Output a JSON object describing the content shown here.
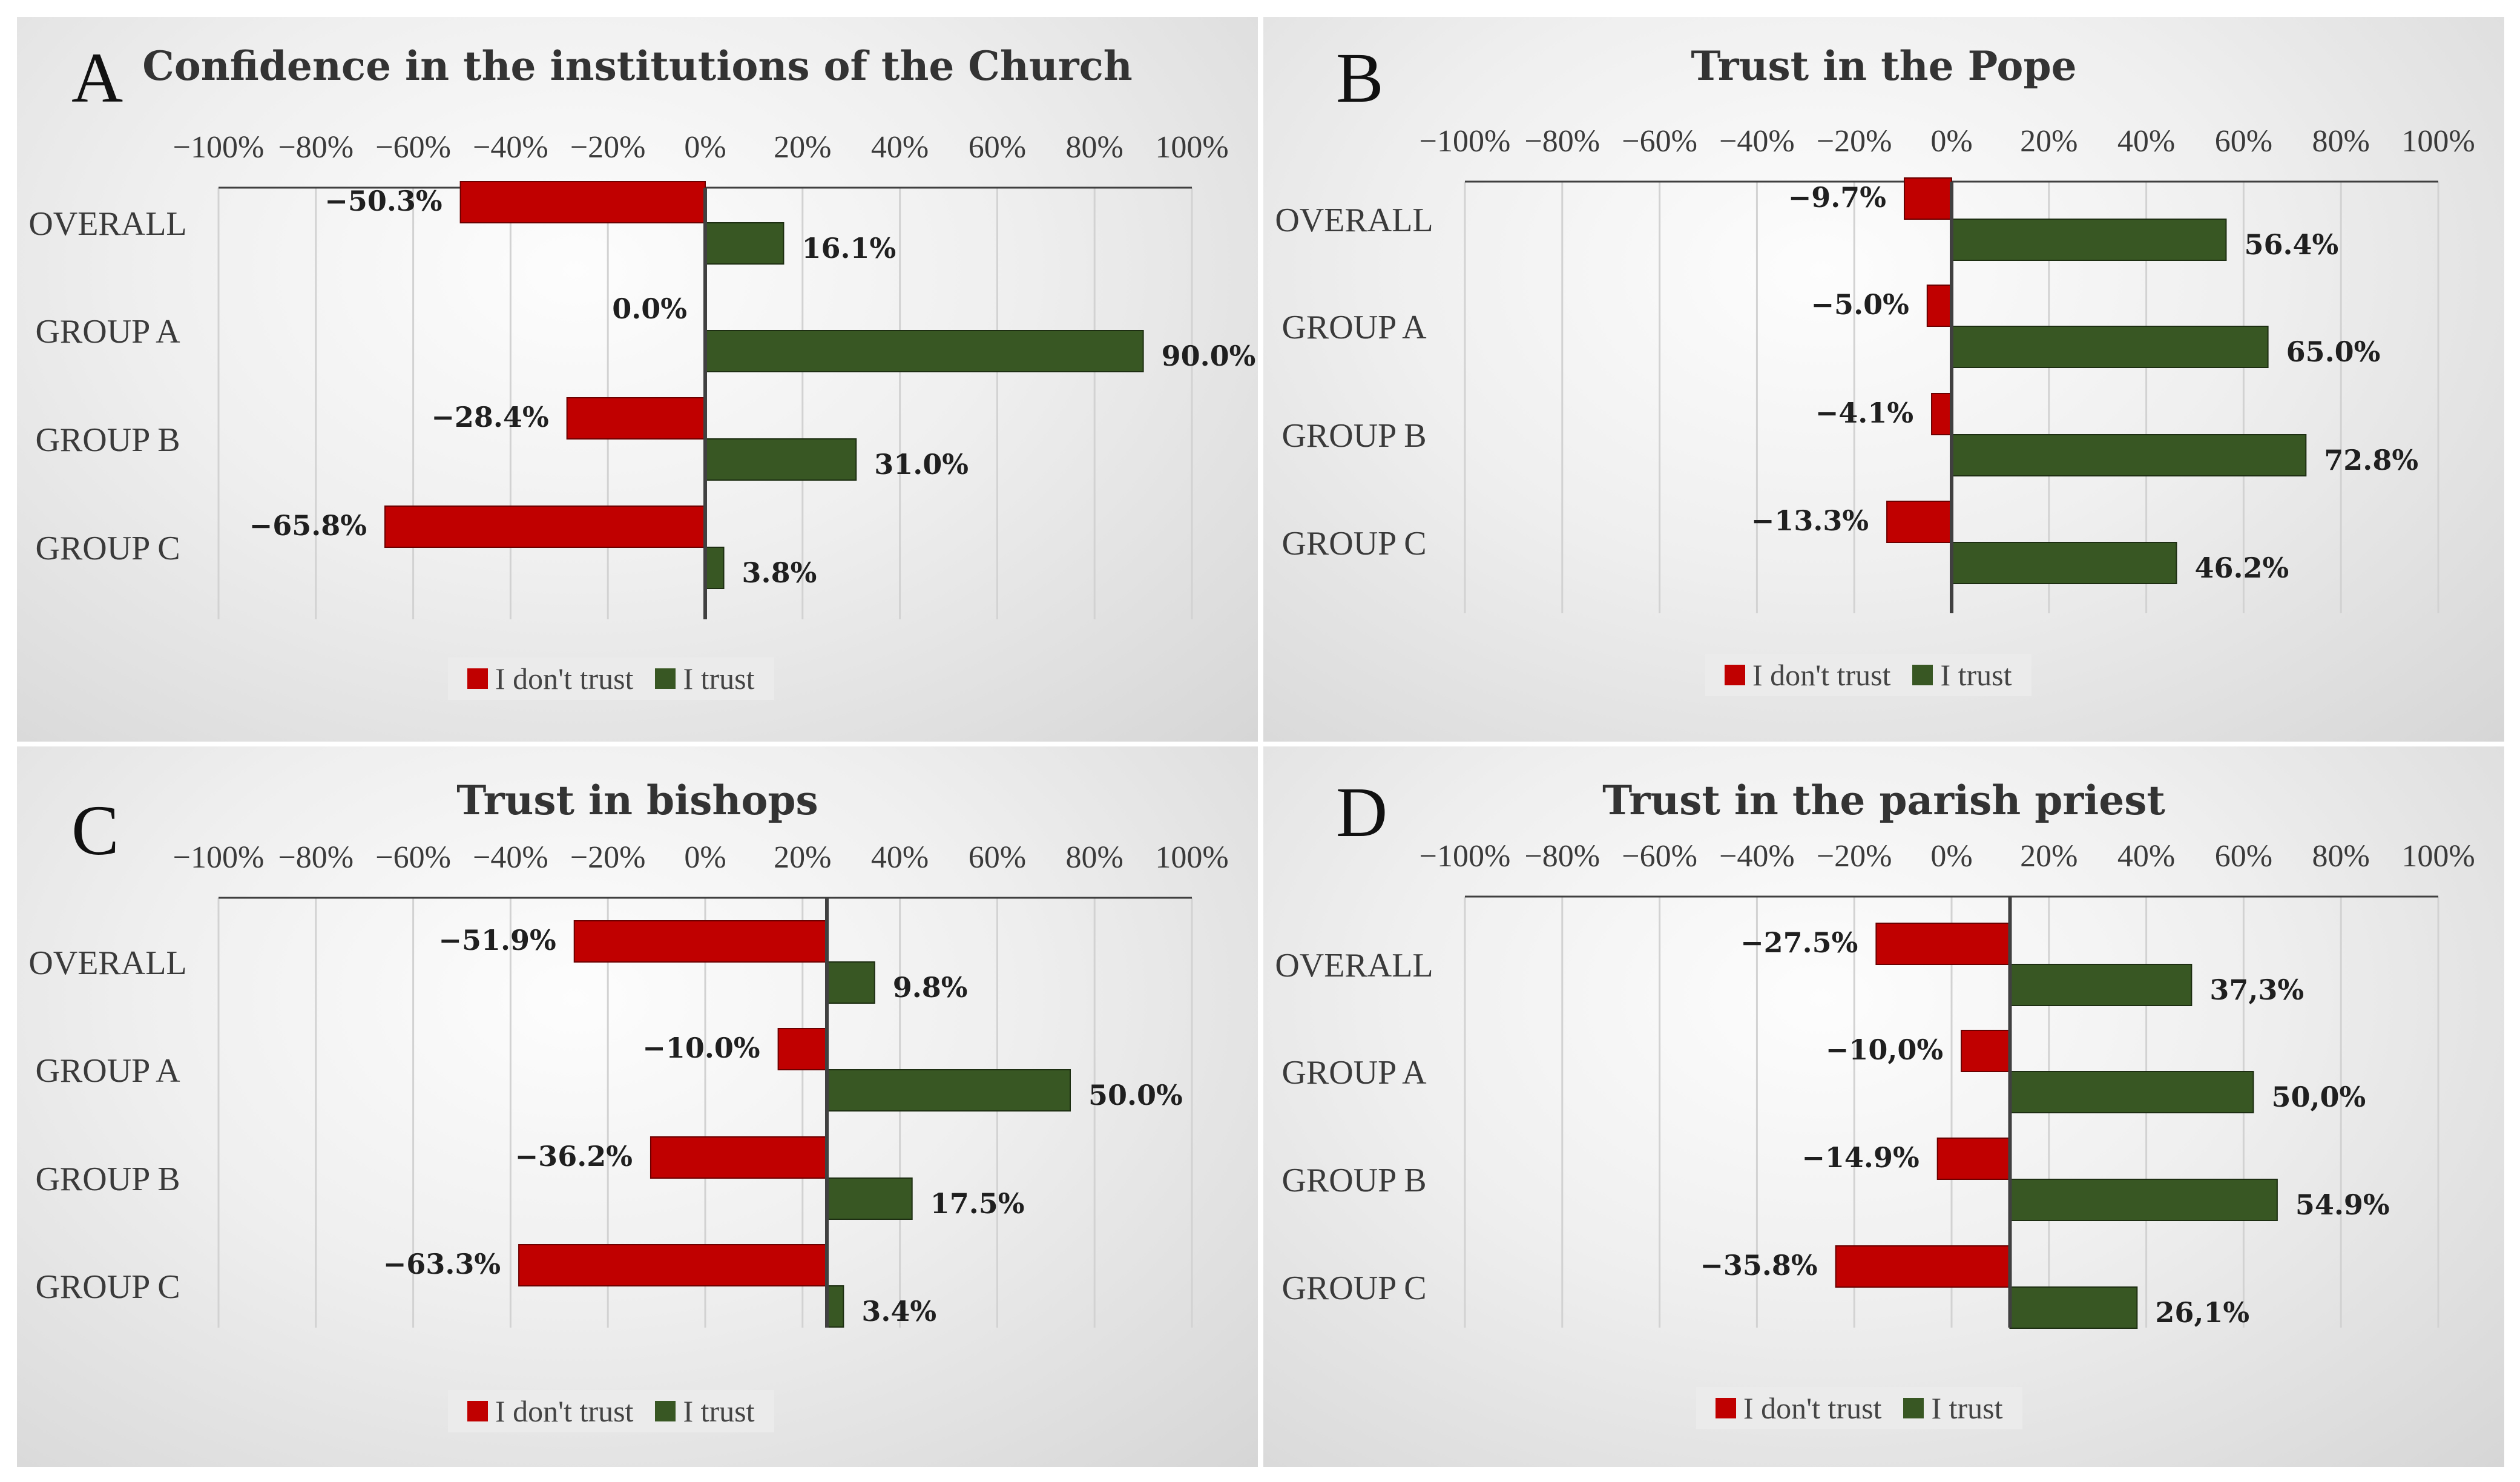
{
  "colors": {
    "distrust": "#c00000",
    "trust": "#385723",
    "grid": "#d2d2d2",
    "axis": "#404040"
  },
  "legend": {
    "distrust_label": "I don't trust",
    "trust_label": "I trust"
  },
  "chart_data": [
    {
      "type": "bar",
      "orientation": "horizontal",
      "panel_letter": "A",
      "title": "Confidence in the institutions of the Church",
      "categories": [
        "OVERALL",
        "GROUP A",
        "GROUP B",
        "GROUP C"
      ],
      "series": [
        {
          "name": "I don't trust",
          "values": [
            -50.3,
            0.0,
            -28.4,
            -65.8
          ],
          "labels": [
            "−50.3%",
            "0.0%",
            "−28.4%",
            "−65.8%"
          ]
        },
        {
          "name": "I trust",
          "values": [
            16.1,
            90.0,
            31.0,
            3.8
          ],
          "labels": [
            "16.1%",
            "90.0%",
            "31.0%",
            "3.8%"
          ]
        }
      ],
      "tick_labels": [
        "−100%",
        "−80%",
        "−60%",
        "−40%",
        "−20%",
        "0%",
        "20%",
        "40%",
        "60%",
        "80%",
        "100%"
      ],
      "xlim": [
        -100,
        100
      ],
      "axis_zero": 0,
      "grid": true,
      "legend_position": "bottom"
    },
    {
      "type": "bar",
      "orientation": "horizontal",
      "panel_letter": "B",
      "title": "Trust in the Pope",
      "categories": [
        "OVERALL",
        "GROUP A",
        "GROUP B",
        "GROUP C"
      ],
      "series": [
        {
          "name": "I don't trust",
          "values": [
            -9.7,
            -5.0,
            -4.1,
            -13.3
          ],
          "labels": [
            "−9.7%",
            "−5.0%",
            "−4.1%",
            "−13.3%"
          ]
        },
        {
          "name": "I trust",
          "values": [
            56.4,
            65.0,
            72.8,
            46.2
          ],
          "labels": [
            "56.4%",
            "65.0%",
            "72.8%",
            "46.2%"
          ]
        }
      ],
      "tick_labels": [
        "−100%",
        "−80%",
        "−60%",
        "−40%",
        "−20%",
        "0%",
        "20%",
        "40%",
        "60%",
        "80%",
        "100%"
      ],
      "xlim": [
        -100,
        100
      ],
      "axis_zero": 0,
      "grid": true,
      "legend_position": "bottom"
    },
    {
      "type": "bar",
      "orientation": "horizontal",
      "panel_letter": "C",
      "title": "Trust in bishops",
      "categories": [
        "OVERALL",
        "GROUP A",
        "GROUP B",
        "GROUP C"
      ],
      "series": [
        {
          "name": "I don't trust",
          "values": [
            -51.9,
            -10.0,
            -36.2,
            -63.3
          ],
          "labels": [
            "−51.9%",
            "−10.0%",
            "−36.2%",
            "−63.3%"
          ]
        },
        {
          "name": "I trust",
          "values": [
            9.8,
            50.0,
            17.5,
            3.4
          ],
          "labels": [
            "9.8%",
            "50.0%",
            "17.5%",
            "3.4%"
          ]
        }
      ],
      "tick_labels": [
        "−100%",
        "−80%",
        "−60%",
        "−40%",
        "−20%",
        "0%",
        "20%",
        "40%",
        "60%",
        "80%",
        "100%"
      ],
      "xlim": [
        -100,
        100
      ],
      "axis_zero": 25,
      "grid": true,
      "legend_position": "bottom"
    },
    {
      "type": "bar",
      "orientation": "horizontal",
      "panel_letter": "D",
      "title": "Trust in the parish priest",
      "categories": [
        "OVERALL",
        "GROUP A",
        "GROUP B",
        "GROUP C"
      ],
      "series": [
        {
          "name": "I don't trust",
          "values": [
            -27.5,
            -10.0,
            -14.9,
            -35.8
          ],
          "labels": [
            "−27.5%",
            "−10,0%",
            "−14.9%",
            "−35.8%"
          ]
        },
        {
          "name": "I trust",
          "values": [
            37.3,
            50.0,
            54.9,
            26.1
          ],
          "labels": [
            "37,3%",
            "50,0%",
            "54.9%",
            "26,1%"
          ]
        }
      ],
      "tick_labels": [
        "−100%",
        "−80%",
        "−60%",
        "−40%",
        "−20%",
        "0%",
        "20%",
        "40%",
        "60%",
        "80%",
        "100%"
      ],
      "xlim": [
        -100,
        100
      ],
      "axis_zero": 12,
      "grid": true,
      "legend_position": "bottom"
    }
  ]
}
